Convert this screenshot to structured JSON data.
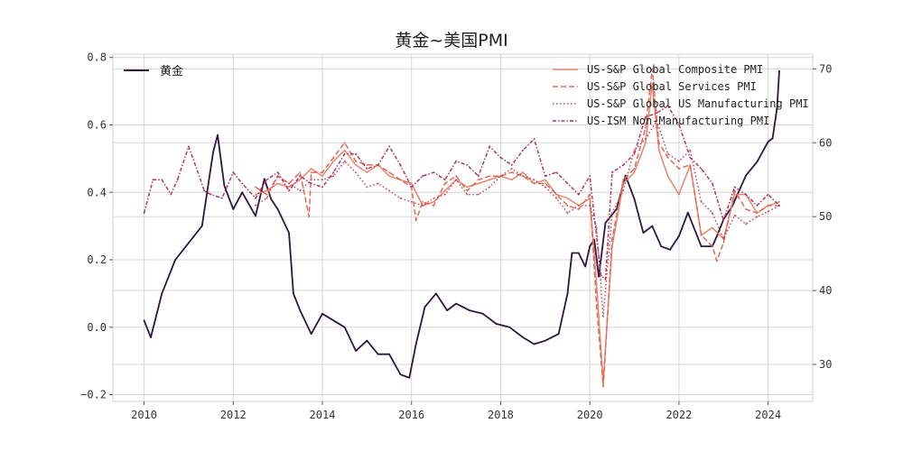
{
  "chart_data": {
    "type": "line",
    "title": "黄金~美国PMI",
    "xlabel": "",
    "ylabel_left": "",
    "ylabel_right": "",
    "grid": true,
    "x_range": [
      2009.3,
      2025.0
    ],
    "ylim_left": [
      -0.22,
      0.81
    ],
    "ylim_right": [
      25,
      72
    ],
    "x_ticks": [
      "2010",
      "2012",
      "2014",
      "2016",
      "2018",
      "2020",
      "2022",
      "2024"
    ],
    "y_left_ticks": [
      "−0.2",
      "0.0",
      "0.2",
      "0.4",
      "0.6",
      "0.8"
    ],
    "y_right_ticks": [
      "30",
      "40",
      "50",
      "60",
      "70"
    ],
    "legend_left": {
      "placement": "top-left",
      "entries": [
        "黄金"
      ]
    },
    "legend_right": {
      "placement": "top-right",
      "entries": [
        "US-S&P Global Composite PMI",
        "US-S&P Global Services PMI",
        "US-S&P Global US Manufacturing PMI",
        "US-ISM Non-Manufacturing PMI"
      ]
    },
    "colors": {
      "gold": "#2d1640",
      "composite": "#e8846a",
      "services": "#df6a56",
      "manufacturing": "#c2465c",
      "ism": "#ad3466"
    },
    "series": [
      {
        "name": "黄金",
        "axis": "left",
        "style": "solid",
        "color_key": "gold",
        "x": [
          2010.0,
          2010.15,
          2010.4,
          2010.7,
          2011.0,
          2011.3,
          2011.55,
          2011.65,
          2011.8,
          2012.0,
          2012.2,
          2012.5,
          2012.7,
          2012.85,
          2013.0,
          2013.25,
          2013.35,
          2013.5,
          2013.75,
          2014.0,
          2014.25,
          2014.5,
          2014.75,
          2015.0,
          2015.25,
          2015.5,
          2015.75,
          2015.95,
          2016.1,
          2016.3,
          2016.55,
          2016.8,
          2017.0,
          2017.3,
          2017.6,
          2017.9,
          2018.2,
          2018.5,
          2018.75,
          2019.0,
          2019.3,
          2019.5,
          2019.6,
          2019.75,
          2019.9,
          2020.0,
          2020.1,
          2020.2,
          2020.35,
          2020.6,
          2020.8,
          2021.0,
          2021.2,
          2021.4,
          2021.6,
          2021.8,
          2022.0,
          2022.2,
          2022.5,
          2022.75,
          2022.85,
          2023.0,
          2023.2,
          2023.5,
          2023.75,
          2024.0,
          2024.1,
          2024.2,
          2024.25
        ],
        "y": [
          0.02,
          -0.03,
          0.1,
          0.2,
          0.25,
          0.3,
          0.52,
          0.57,
          0.42,
          0.35,
          0.4,
          0.33,
          0.44,
          0.38,
          0.35,
          0.28,
          0.1,
          0.05,
          -0.02,
          0.04,
          0.02,
          0.0,
          -0.07,
          -0.04,
          -0.08,
          -0.08,
          -0.14,
          -0.15,
          -0.05,
          0.06,
          0.1,
          0.05,
          0.07,
          0.05,
          0.04,
          0.01,
          0.0,
          -0.03,
          -0.05,
          -0.04,
          -0.02,
          0.1,
          0.22,
          0.22,
          0.18,
          0.24,
          0.26,
          0.15,
          0.31,
          0.35,
          0.45,
          0.38,
          0.28,
          0.3,
          0.24,
          0.23,
          0.27,
          0.34,
          0.24,
          0.24,
          0.27,
          0.32,
          0.36,
          0.45,
          0.49,
          0.55,
          0.56,
          0.65,
          0.76
        ]
      },
      {
        "name": "US-S&P Global Composite PMI",
        "axis": "right",
        "style": "solid",
        "color_key": "composite",
        "x": [
          2012.5,
          2012.75,
          2013.0,
          2013.25,
          2013.5,
          2013.75,
          2014.0,
          2014.25,
          2014.5,
          2014.75,
          2015.0,
          2015.25,
          2015.5,
          2015.75,
          2016.0,
          2016.25,
          2016.5,
          2016.75,
          2017.0,
          2017.25,
          2017.5,
          2017.75,
          2018.0,
          2018.25,
          2018.5,
          2018.75,
          2019.0,
          2019.25,
          2019.5,
          2019.75,
          2020.0,
          2020.15,
          2020.3,
          2020.5,
          2020.75,
          2021.0,
          2021.25,
          2021.4,
          2021.55,
          2021.75,
          2022.0,
          2022.25,
          2022.5,
          2022.75,
          2023.0,
          2023.25,
          2023.5,
          2023.75,
          2024.0,
          2024.25
        ],
        "y": [
          53.0,
          53.5,
          54.5,
          54.0,
          55.0,
          56.5,
          55.5,
          57.5,
          59.0,
          57.0,
          56.0,
          57.0,
          55.5,
          55.0,
          54.5,
          51.5,
          52.0,
          53.5,
          55.0,
          54.0,
          54.5,
          55.0,
          55.5,
          55.0,
          56.0,
          54.5,
          55.0,
          53.0,
          52.5,
          51.5,
          52.5,
          41.0,
          27.5,
          46.0,
          54.5,
          56.0,
          60.0,
          68.0,
          59.0,
          55.5,
          53.0,
          57.0,
          47.5,
          48.5,
          47.0,
          53.0,
          53.0,
          50.5,
          51.5,
          52.0
        ]
      },
      {
        "name": "US-S&P Global Services PMI",
        "axis": "right",
        "style": "dashed",
        "color_key": "services",
        "x": [
          2012.5,
          2012.75,
          2013.0,
          2013.25,
          2013.5,
          2013.7,
          2013.75,
          2014.0,
          2014.25,
          2014.5,
          2014.75,
          2015.0,
          2015.25,
          2015.5,
          2015.75,
          2016.0,
          2016.1,
          2016.25,
          2016.5,
          2016.75,
          2017.0,
          2017.25,
          2017.5,
          2017.75,
          2018.0,
          2018.25,
          2018.5,
          2018.75,
          2019.0,
          2019.25,
          2019.5,
          2019.75,
          2020.0,
          2020.15,
          2020.3,
          2020.5,
          2020.75,
          2021.0,
          2021.25,
          2021.4,
          2021.55,
          2021.75,
          2022.0,
          2022.25,
          2022.5,
          2022.75,
          2022.85,
          2023.0,
          2023.25,
          2023.5,
          2023.75,
          2024.0,
          2024.25
        ],
        "y": [
          54.0,
          53.0,
          55.5,
          54.5,
          56.0,
          50.0,
          56.0,
          56.0,
          58.0,
          60.0,
          57.5,
          57.0,
          57.0,
          56.0,
          55.0,
          54.0,
          49.5,
          52.0,
          51.5,
          54.5,
          55.5,
          53.5,
          55.0,
          55.5,
          55.5,
          56.0,
          55.5,
          54.5,
          54.5,
          53.0,
          51.5,
          51.0,
          53.0,
          38.0,
          27.0,
          47.0,
          55.0,
          56.5,
          62.0,
          70.0,
          60.0,
          58.0,
          56.5,
          57.0,
          47.5,
          46.0,
          44.0,
          46.5,
          53.5,
          51.0,
          50.5,
          51.5,
          51.5
        ]
      },
      {
        "name": "US-S&P Global US Manufacturing PMI",
        "axis": "right",
        "style": "dotted",
        "color_key": "manufacturing",
        "x": [
          2012.5,
          2012.75,
          2013.0,
          2013.25,
          2013.5,
          2013.75,
          2014.0,
          2014.25,
          2014.5,
          2014.75,
          2015.0,
          2015.25,
          2015.5,
          2015.75,
          2016.0,
          2016.25,
          2016.5,
          2016.75,
          2017.0,
          2017.25,
          2017.5,
          2017.75,
          2018.0,
          2018.25,
          2018.5,
          2018.75,
          2019.0,
          2019.25,
          2019.5,
          2019.75,
          2020.0,
          2020.15,
          2020.3,
          2020.5,
          2020.75,
          2021.0,
          2021.25,
          2021.5,
          2021.75,
          2022.0,
          2022.25,
          2022.5,
          2022.75,
          2023.0,
          2023.25,
          2023.5,
          2023.75,
          2024.0,
          2024.25
        ],
        "y": [
          51.5,
          52.5,
          55.5,
          54.5,
          53.5,
          55.0,
          55.0,
          55.5,
          57.5,
          56.0,
          54.0,
          54.5,
          53.5,
          52.5,
          52.0,
          51.5,
          52.5,
          53.0,
          55.0,
          53.0,
          53.0,
          54.0,
          55.5,
          56.5,
          55.5,
          55.0,
          54.0,
          52.5,
          50.5,
          51.5,
          51.5,
          48.5,
          36.5,
          50.5,
          53.5,
          59.0,
          60.5,
          63.0,
          58.5,
          57.5,
          59.0,
          52.0,
          50.5,
          47.0,
          50.2,
          49.0,
          50.0,
          50.7,
          51.5
        ]
      },
      {
        "name": "US-ISM Non-Manufacturing PMI",
        "axis": "right",
        "style": "dashdot",
        "color_key": "ism",
        "x": [
          2010.0,
          2010.2,
          2010.4,
          2010.6,
          2010.75,
          2011.0,
          2011.15,
          2011.35,
          2011.5,
          2011.75,
          2012.0,
          2012.2,
          2012.5,
          2012.75,
          2013.0,
          2013.25,
          2013.5,
          2013.75,
          2014.0,
          2014.25,
          2014.5,
          2014.75,
          2015.0,
          2015.25,
          2015.5,
          2015.75,
          2016.0,
          2016.25,
          2016.5,
          2016.75,
          2017.0,
          2017.25,
          2017.5,
          2017.75,
          2018.0,
          2018.25,
          2018.5,
          2018.75,
          2019.0,
          2019.25,
          2019.5,
          2019.75,
          2020.0,
          2020.25,
          2020.35,
          2020.5,
          2020.75,
          2021.0,
          2021.25,
          2021.5,
          2021.75,
          2022.0,
          2022.25,
          2022.5,
          2022.75,
          2023.0,
          2023.25,
          2023.5,
          2023.75,
          2024.0,
          2024.25
        ],
        "y": [
          50.5,
          55.0,
          55.0,
          53.0,
          55.0,
          59.5,
          57.0,
          53.5,
          53.0,
          52.5,
          56.0,
          54.5,
          52.5,
          55.0,
          56.0,
          53.5,
          55.5,
          54.5,
          54.0,
          56.0,
          58.5,
          58.5,
          56.5,
          57.0,
          59.5,
          57.0,
          54.0,
          55.5,
          56.0,
          55.0,
          57.5,
          57.0,
          55.5,
          59.5,
          58.0,
          57.0,
          59.0,
          60.5,
          55.5,
          56.0,
          54.5,
          53.0,
          55.5,
          42.0,
          41.5,
          56.0,
          57.0,
          58.5,
          63.5,
          64.0,
          65.0,
          62.5,
          58.0,
          56.5,
          54.5,
          49.5,
          54.0,
          53.0,
          51.5,
          53.0,
          51.5
        ]
      }
    ]
  }
}
